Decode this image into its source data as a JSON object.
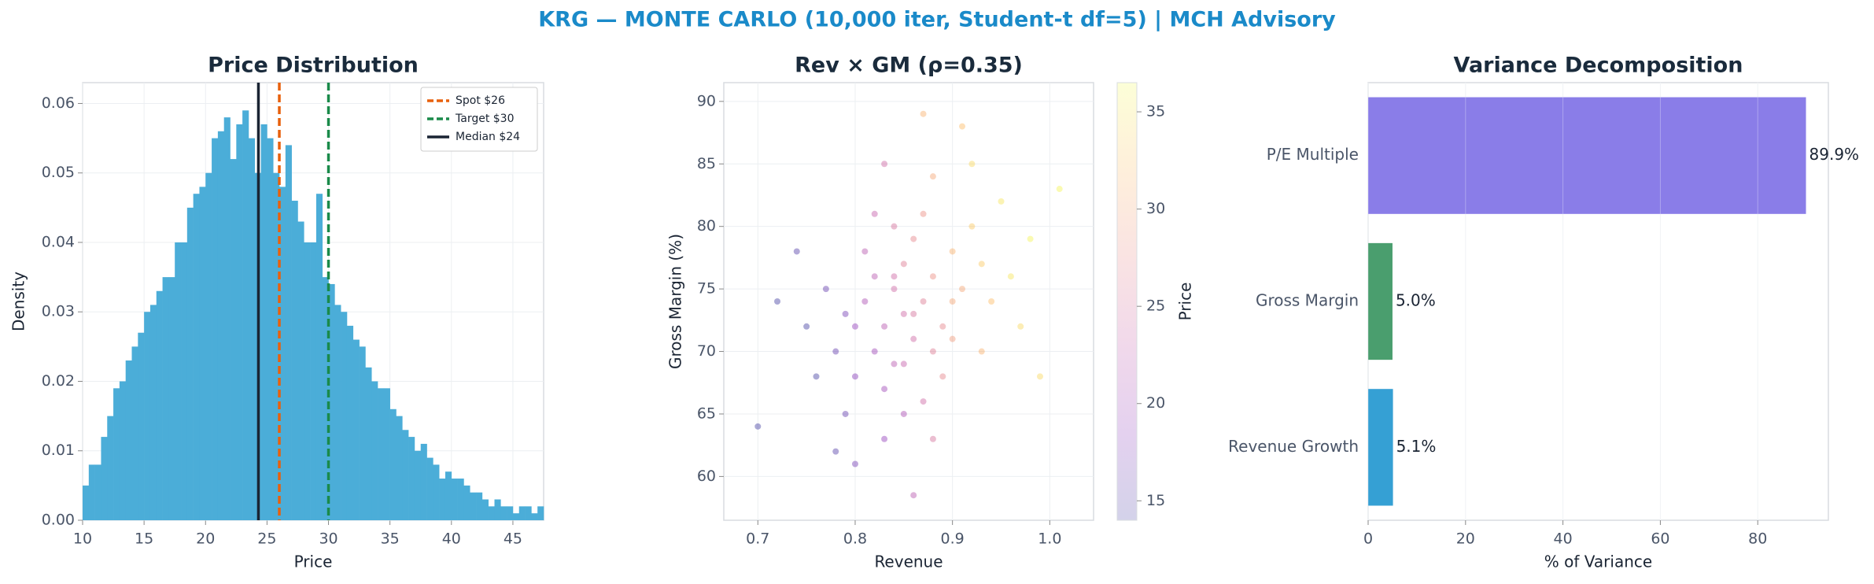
{
  "title": "KRG — MONTE CARLO (10,000 iter, Student-t df=5) | MCH Advisory",
  "chart_data": [
    {
      "type": "histogram",
      "title": "Price Distribution",
      "x_label": "Price",
      "y_label": "Density",
      "bins": [
        10,
        10.5,
        11,
        11.5,
        12,
        12.5,
        13,
        13.5,
        14,
        14.5,
        15,
        15.5,
        16,
        16.5,
        17,
        17.5,
        18,
        18.5,
        19,
        19.5,
        20,
        20.5,
        21,
        21.5,
        22,
        22.5,
        23,
        23.5,
        24,
        24.5,
        25,
        25.5,
        26,
        26.5,
        27,
        27.5,
        28,
        28.5,
        29,
        29.5,
        30,
        30.5,
        31,
        31.5,
        32,
        32.5,
        33,
        33.5,
        34,
        34.5,
        35,
        35.5,
        36,
        36.5,
        37,
        37.5,
        38,
        38.5,
        39,
        39.5,
        40,
        40.5,
        41,
        41.5,
        42,
        42.5,
        43,
        43.5,
        44,
        44.5,
        45,
        45.5,
        46,
        46.5,
        47,
        47.5
      ],
      "values": [
        0.005,
        0.008,
        0.008,
        0.012,
        0.015,
        0.019,
        0.02,
        0.023,
        0.025,
        0.027,
        0.03,
        0.031,
        0.033,
        0.035,
        0.035,
        0.04,
        0.04,
        0.045,
        0.047,
        0.048,
        0.05,
        0.055,
        0.056,
        0.058,
        0.052,
        0.057,
        0.059,
        0.055,
        0.05,
        0.057,
        0.055,
        0.05,
        0.048,
        0.054,
        0.046,
        0.043,
        0.04,
        0.04,
        0.047,
        0.035,
        0.034,
        0.031,
        0.03,
        0.028,
        0.026,
        0.025,
        0.022,
        0.02,
        0.019,
        0.019,
        0.016,
        0.015,
        0.013,
        0.012,
        0.01,
        0.011,
        0.009,
        0.008,
        0.006,
        0.007,
        0.006,
        0.006,
        0.005,
        0.004,
        0.004,
        0.003,
        0.002,
        0.003,
        0.002,
        0.002,
        0.001,
        0.002,
        0.002,
        0.001,
        0.002
      ],
      "color": "#4badd8",
      "xlim": [
        10,
        47.5
      ],
      "ylim": [
        0,
        0.063
      ],
      "xticks": [
        10,
        15,
        20,
        25,
        30,
        35,
        40,
        45
      ],
      "yticks": [
        {
          "value": 0,
          "label": "0.00"
        },
        0.01,
        0.02,
        0.03,
        0.04,
        0.05,
        0.06
      ],
      "grid": true,
      "legend": "upper right",
      "reference_lines": [
        {
          "name": "Spot $26",
          "value": 26,
          "color": "#e8600c",
          "style": "dashed"
        },
        {
          "name": "Target $30",
          "value": 30,
          "color": "#1a8a4a",
          "style": "dashed"
        },
        {
          "name": "Median $24",
          "value": 24.3,
          "color": "#1a2433",
          "style": "solid"
        }
      ]
    },
    {
      "type": "scatter",
      "title": "Rev × GM (ρ=0.35)",
      "x_label": "Revenue",
      "y_label": "Gross Margin (%)",
      "x": [
        0.85,
        0.82,
        0.88,
        0.8,
        0.9,
        0.83,
        0.87,
        0.86,
        0.84,
        0.78,
        0.92,
        0.81,
        0.89,
        0.85,
        0.83,
        0.88,
        0.86,
        0.79,
        0.91,
        0.82,
        0.84,
        0.87,
        0.8,
        0.93,
        0.85,
        0.76,
        0.95,
        0.88,
        0.72,
        0.98,
        0.83,
        0.9,
        0.86,
        0.81,
        0.94,
        0.77,
        0.89,
        0.84,
        0.87,
        0.79,
        0.92,
        0.75,
        0.96,
        0.85,
        0.82,
        0.9,
        0.7,
        1.01,
        0.87,
        0.8,
        0.93,
        0.74,
        0.97,
        0.86,
        0.88,
        0.83,
        0.91,
        0.78,
        0.99,
        0.84
      ],
      "values": [
        73,
        70,
        76,
        68,
        78,
        72,
        74,
        71,
        75,
        70,
        80,
        74,
        72,
        77,
        67,
        70,
        79,
        73,
        75,
        76,
        69,
        81,
        72,
        77,
        65,
        68,
        82,
        84,
        74,
        79,
        63,
        71,
        73,
        78,
        74,
        75,
        68,
        80,
        66,
        65,
        85,
        72,
        76,
        69,
        81,
        74,
        64,
        83,
        89,
        61,
        70,
        78,
        72,
        58.5,
        63,
        85,
        88,
        62,
        68,
        76
      ],
      "color_values": [
        24,
        20,
        28,
        18,
        31,
        22,
        26,
        24,
        24,
        16,
        33,
        21,
        27,
        26,
        20,
        26,
        27,
        17,
        30,
        22,
        22,
        28,
        19,
        33,
        21,
        14,
        35,
        30,
        14,
        36,
        19,
        29,
        25,
        22,
        32,
        16,
        27,
        25,
        24,
        16,
        34,
        14,
        35,
        23,
        23,
        30,
        14,
        36,
        31,
        17,
        31,
        15,
        34,
        22,
        25,
        24,
        32,
        15,
        34,
        24
      ],
      "colormap": "plasma",
      "colorbar_label": "Price",
      "clim": [
        14,
        36.5
      ],
      "cticks": [
        15,
        20,
        25,
        30,
        35
      ],
      "xlim": [
        0.665,
        1.045
      ],
      "ylim": [
        56.5,
        91.5
      ],
      "xticks": [
        0.7,
        0.8,
        0.9,
        {
          "value": 1,
          "label": "1.0"
        }
      ],
      "yticks": [
        60,
        65,
        70,
        75,
        80,
        85,
        90
      ],
      "grid": true
    },
    {
      "type": "barh",
      "title": "Variance Decomposition",
      "x_label": "% of Variance",
      "categories": [
        "Revenue Growth",
        "Gross Margin",
        "P/E Multiple"
      ],
      "values": [
        5.1,
        5.0,
        89.9
      ],
      "value_labels": [
        "5.1%",
        "5.0%",
        "89.9%"
      ],
      "colors": [
        "#35a0d4",
        "#4a9e6e",
        "#8a7de8"
      ],
      "xlim": [
        0,
        94.5
      ],
      "xticks": [
        0,
        20,
        40,
        60,
        80
      ],
      "grid": true
    }
  ]
}
